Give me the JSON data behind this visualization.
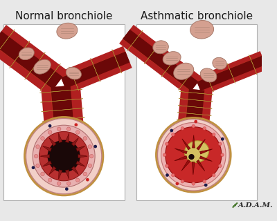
{
  "title_left": "Normal bronchiole",
  "title_right": "Asthmatic bronchiole",
  "bg_color": "#e8e8e8",
  "panel_bg": "#ffffff",
  "title_fontsize": 11,
  "adam_text": "A.D.A.M.",
  "adam_color": "#2a2a2a",
  "panel_border": "#b0b0b0",
  "tube_outer": "#b02020",
  "tube_mid": "#8b1515",
  "tube_inner": "#6b0808",
  "tube_highlight": "#c85020",
  "muscle_wrap": "#7a1010",
  "ring_gold": "#c09040",
  "skin_node": "#d4a090",
  "skin_node2": "#c89080",
  "outer_wall": "#f2d0c8",
  "wall_pink": "#e8b0b0",
  "mucosa_red": "#c03030",
  "lumen_dark": "#1a0808",
  "fold_dark": "#8b1515",
  "mucus_yellow": "#d4c060",
  "inflamed_red": "#cc2020",
  "dot_blue": "#1a1a4a",
  "dot_red": "#cc2222"
}
